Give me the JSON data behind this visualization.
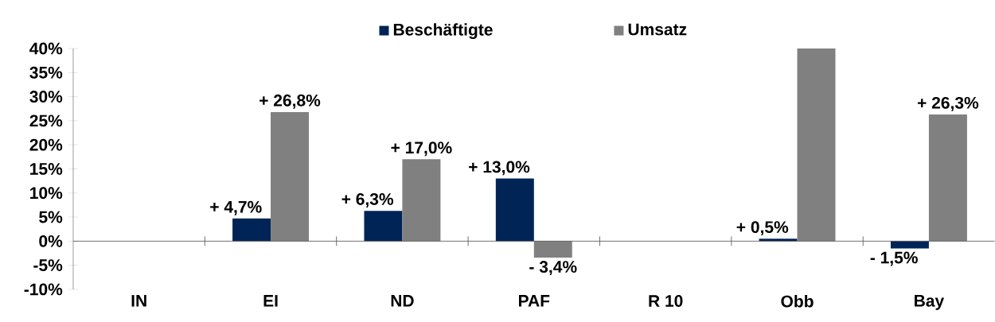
{
  "chart_data": {
    "type": "bar",
    "categories": [
      "IN",
      "EI",
      "ND",
      "PAF",
      "R 10",
      "Obb",
      "Bay"
    ],
    "series": [
      {
        "name": "Beschäftigte",
        "color": "#002456",
        "values": [
          null,
          4.7,
          6.3,
          13.0,
          null,
          0.5,
          -1.5
        ],
        "value_labels": [
          null,
          "+ 4,7%",
          "+ 6,3%",
          "+ 13,0%",
          null,
          "+ 0,5%",
          "- 1,5%"
        ]
      },
      {
        "name": "Umsatz",
        "color": "#808080",
        "values": [
          null,
          26.8,
          17.0,
          -3.4,
          null,
          40,
          26.3
        ],
        "value_labels": [
          null,
          "+ 26,8%",
          "+ 17,0%",
          "- 3,4%",
          null,
          null,
          "+ 26,3%"
        ]
      }
    ],
    "ylim": [
      -10,
      40
    ],
    "yticks": [
      {
        "value": -10,
        "label": "-10%"
      },
      {
        "value": -5,
        "label": "-5%"
      },
      {
        "value": 0,
        "label": "0%"
      },
      {
        "value": 5,
        "label": "5%"
      },
      {
        "value": 10,
        "label": "10%"
      },
      {
        "value": 15,
        "label": "15%"
      },
      {
        "value": 20,
        "label": "20%"
      },
      {
        "value": 25,
        "label": "25%"
      },
      {
        "value": 30,
        "label": "30%"
      },
      {
        "value": 35,
        "label": "35%"
      },
      {
        "value": 40,
        "label": "40%"
      }
    ],
    "legend": "top"
  }
}
